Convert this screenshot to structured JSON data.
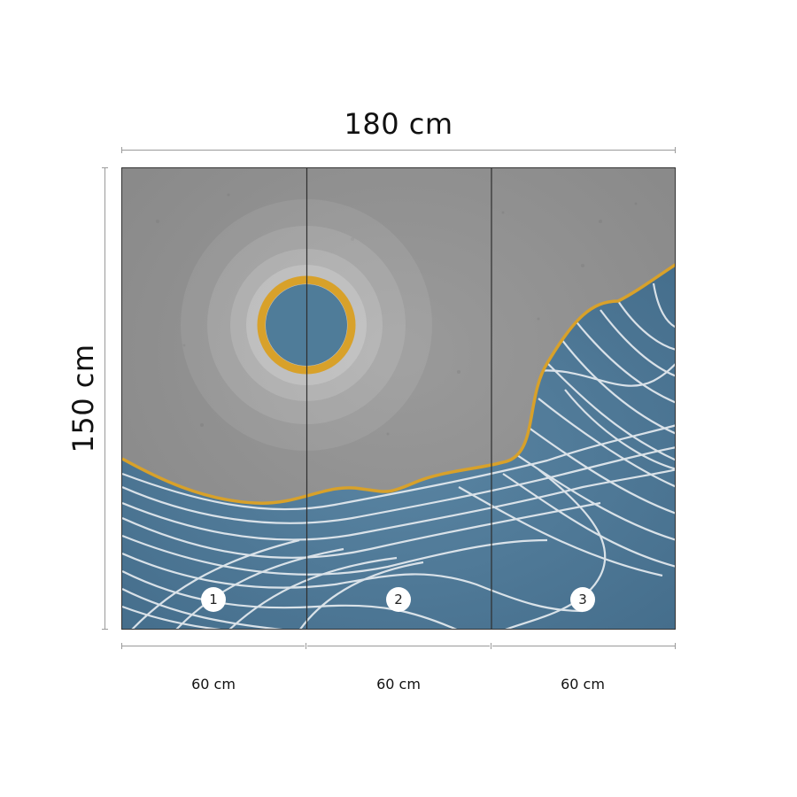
{
  "dimensions": {
    "total_width_label": "180 cm",
    "total_height_label": "150 cm"
  },
  "panels": [
    {
      "number": "1",
      "width_label": "60 cm"
    },
    {
      "number": "2",
      "width_label": "60 cm"
    },
    {
      "number": "3",
      "width_label": "60 cm"
    }
  ],
  "colors": {
    "concrete_gray": "#8e8e8e",
    "wave_blue": "#4d7796",
    "line_white": "#e9eef2",
    "gold": "#d8a12a",
    "sun_blue": "#4f7c99"
  }
}
